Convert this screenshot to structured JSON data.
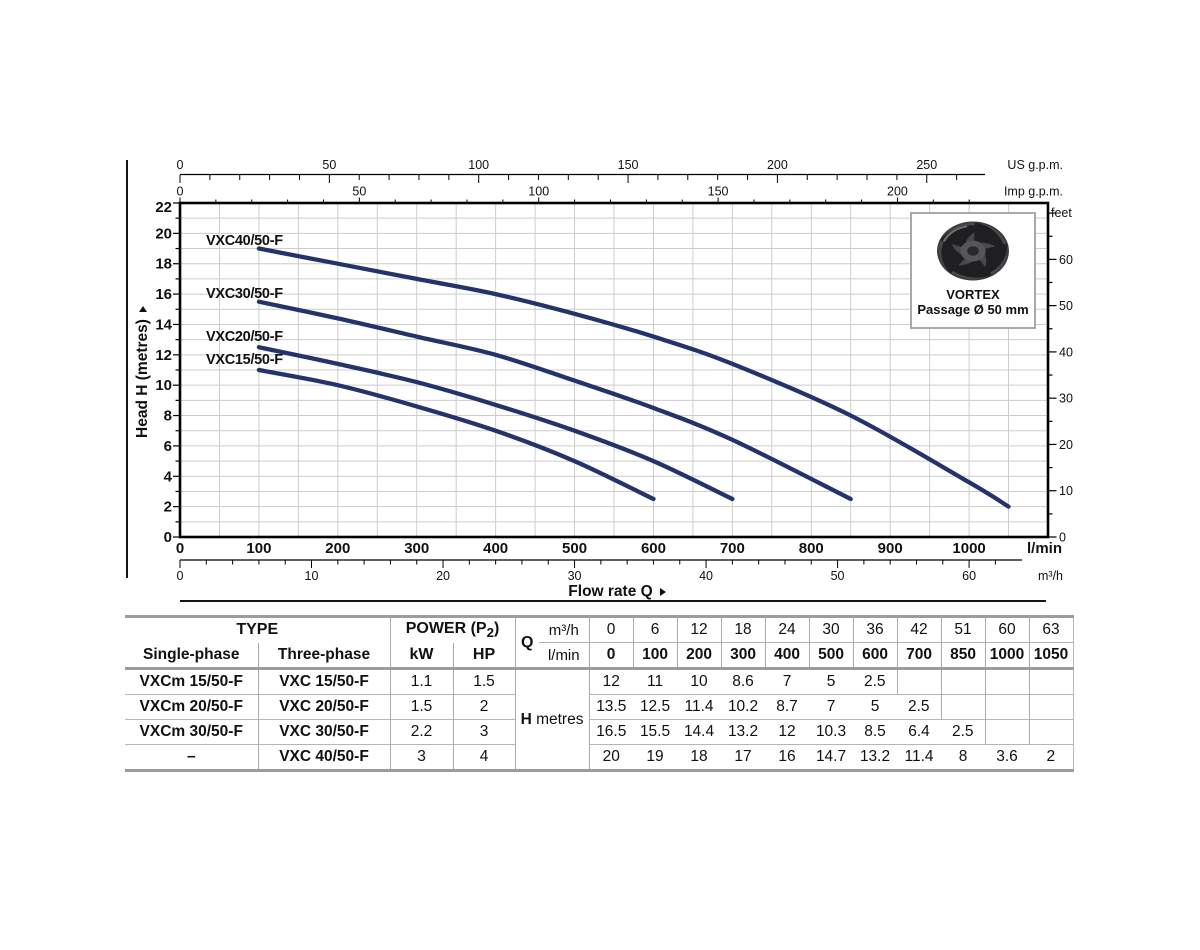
{
  "colors": {
    "curve": "#24346a",
    "grid": "#cccccc",
    "axis": "#000000",
    "table_heavy": "#9c9c9c",
    "table_light": "#b3b3b3"
  },
  "chart_data": {
    "type": "line",
    "title": "",
    "xlabel": "Flow rate Q",
    "ylabel": "Head H (metres)",
    "xlim_lmin": [
      0,
      1100
    ],
    "ylim_m": [
      0,
      22
    ],
    "grid": "on",
    "axes": {
      "us_gpm": {
        "unit_label": "US g.p.m.",
        "ticks": [
          0,
          50,
          100,
          150,
          200,
          250
        ],
        "minor_step": 10,
        "max": 290
      },
      "imp_gpm": {
        "unit_label": "Imp g.p.m.",
        "ticks": [
          0,
          50,
          100,
          150,
          200
        ],
        "minor_step": 10,
        "max": 240
      },
      "lmin": {
        "unit_label": "l/min",
        "ticks": [
          0,
          100,
          200,
          300,
          400,
          500,
          600,
          700,
          800,
          900,
          1000
        ]
      },
      "m3h": {
        "unit_label": "m³/h",
        "ticks": [
          0,
          10,
          20,
          30,
          40,
          50,
          60
        ],
        "minor_step": 2,
        "max": 64
      },
      "metres": {
        "ticks": [
          0,
          2,
          4,
          6,
          8,
          10,
          12,
          14,
          16,
          18,
          20,
          22
        ],
        "minor_step": 1
      },
      "feet": {
        "unit_label": "feet",
        "ticks": [
          0,
          10,
          20,
          30,
          40,
          50,
          60
        ],
        "minor_step": 5,
        "max": 70
      }
    },
    "series": [
      {
        "name": "VXC40/50-F",
        "points_lmin_m": [
          [
            100,
            19
          ],
          [
            200,
            18
          ],
          [
            300,
            17
          ],
          [
            400,
            16
          ],
          [
            500,
            14.7
          ],
          [
            600,
            13.2
          ],
          [
            700,
            11.4
          ],
          [
            850,
            8
          ],
          [
            1000,
            3.6
          ],
          [
            1050,
            2
          ]
        ]
      },
      {
        "name": "VXC30/50-F",
        "points_lmin_m": [
          [
            100,
            15.5
          ],
          [
            200,
            14.4
          ],
          [
            300,
            13.2
          ],
          [
            400,
            12
          ],
          [
            500,
            10.3
          ],
          [
            600,
            8.5
          ],
          [
            700,
            6.4
          ],
          [
            850,
            2.5
          ]
        ]
      },
      {
        "name": "VXC20/50-F",
        "points_lmin_m": [
          [
            100,
            12.5
          ],
          [
            200,
            11.4
          ],
          [
            300,
            10.2
          ],
          [
            400,
            8.7
          ],
          [
            500,
            7
          ],
          [
            600,
            5
          ],
          [
            700,
            2.5
          ]
        ]
      },
      {
        "name": "VXC15/50-F",
        "points_lmin_m": [
          [
            100,
            11
          ],
          [
            200,
            10
          ],
          [
            300,
            8.6
          ],
          [
            400,
            7
          ],
          [
            500,
            5
          ],
          [
            600,
            2.5
          ]
        ]
      }
    ],
    "vortex_box": {
      "title": "VORTEX",
      "subtitle": "Passage Ø 50 mm"
    }
  },
  "table": {
    "type_header": "TYPE",
    "power_header": {
      "prefix": "POWER (P",
      "sub": "2",
      "suffix": ")"
    },
    "phase_headers": {
      "single": "Single-phase",
      "three": "Three-phase"
    },
    "power_units": {
      "kw": "kW",
      "hp": "HP"
    },
    "q_label": "Q",
    "q_units": {
      "m3h": "m³/h",
      "lmin": "l/min"
    },
    "q_m3h": [
      "0",
      "6",
      "12",
      "18",
      "24",
      "30",
      "36",
      "42",
      "51",
      "60",
      "63"
    ],
    "q_lmin": [
      "0",
      "100",
      "200",
      "300",
      "400",
      "500",
      "600",
      "700",
      "850",
      "1000",
      "1050"
    ],
    "h_label": {
      "bold": "H",
      "rest": "metres"
    },
    "rows": [
      {
        "single": "VXCm 15/50-F",
        "three": "VXC 15/50-F",
        "kw": "1.1",
        "hp": "1.5"
      },
      {
        "single": "VXCm 20/50-F",
        "three": "VXC 20/50-F",
        "kw": "1.5",
        "hp": "2"
      },
      {
        "single": "VXCm 30/50-F",
        "three": "VXC 30/50-F",
        "kw": "2.2",
        "hp": "3"
      },
      {
        "single": "–",
        "three": "VXC 40/50-F",
        "kw": "3",
        "hp": "4"
      }
    ],
    "h_rows": [
      [
        "12",
        "11",
        "10",
        "8.6",
        "7",
        "5",
        "2.5",
        "",
        "",
        "",
        ""
      ],
      [
        "13.5",
        "12.5",
        "11.4",
        "10.2",
        "8.7",
        "7",
        "5",
        "2.5",
        "",
        "",
        ""
      ],
      [
        "16.5",
        "15.5",
        "14.4",
        "13.2",
        "12",
        "10.3",
        "8.5",
        "6.4",
        "2.5",
        "",
        ""
      ],
      [
        "20",
        "19",
        "18",
        "17",
        "16",
        "14.7",
        "13.2",
        "11.4",
        "8",
        "3.6",
        "2"
      ]
    ]
  }
}
